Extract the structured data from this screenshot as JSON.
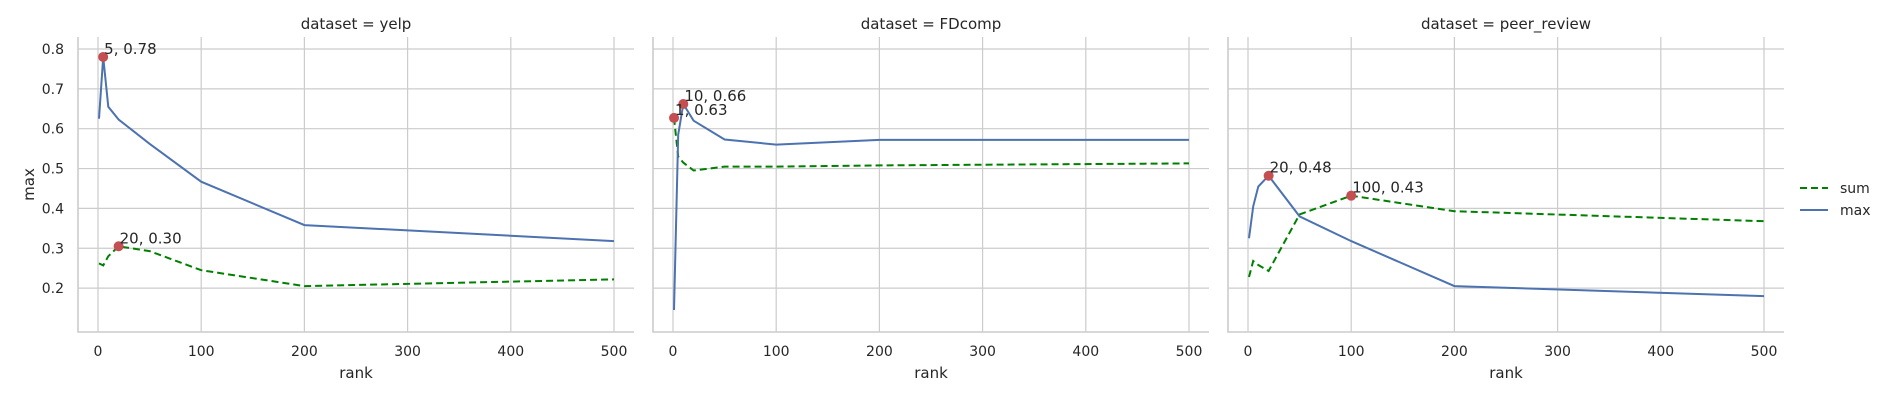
{
  "chart_data": {
    "type": "line",
    "ylabel": "max",
    "xlabel": "rank",
    "xlim": [
      -25,
      525
    ],
    "ylim": [
      0.115,
      0.81
    ],
    "xticks": [
      0,
      100,
      200,
      300,
      400,
      500
    ],
    "yticks": [
      0.2,
      0.3,
      0.4,
      0.5,
      0.6,
      0.7,
      0.8
    ],
    "grid": true,
    "legend_position": "right",
    "colors": {
      "sum": "#008000",
      "max": "#4c72b0",
      "marker": "#c44e52"
    },
    "legend": [
      {
        "name": "sum",
        "style": "dashed"
      },
      {
        "name": "max",
        "style": "solid"
      }
    ],
    "panels": [
      {
        "title": "dataset = yelp",
        "series": [
          {
            "name": "sum",
            "x": [
              1,
              5,
              10,
              20,
              50,
              100,
              200,
              500
            ],
            "y": [
              0.262,
              0.257,
              0.28,
              0.305,
              0.293,
              0.245,
              0.205,
              0.222
            ]
          },
          {
            "name": "max",
            "x": [
              1,
              5,
              10,
              20,
              50,
              100,
              200,
              500
            ],
            "y": [
              0.625,
              0.78,
              0.655,
              0.623,
              0.562,
              0.467,
              0.358,
              0.318
            ]
          }
        ],
        "annotations": [
          {
            "x": 5,
            "y": 0.78,
            "text": "5, 0.78"
          },
          {
            "x": 20,
            "y": 0.305,
            "text": "20, 0.30"
          }
        ]
      },
      {
        "title": "dataset = FDcomp",
        "series": [
          {
            "name": "sum",
            "x": [
              1,
              5,
              10,
              20,
              50,
              100,
              200,
              500
            ],
            "y": [
              0.627,
              0.53,
              0.515,
              0.495,
              0.505,
              0.505,
              0.508,
              0.513
            ]
          },
          {
            "name": "max",
            "x": [
              1,
              5,
              10,
              20,
              50,
              100,
              200,
              500
            ],
            "y": [
              0.145,
              0.585,
              0.662,
              0.62,
              0.573,
              0.56,
              0.572,
              0.572
            ]
          }
        ],
        "annotations": [
          {
            "x": 10,
            "y": 0.662,
            "text": "10, 0.66"
          },
          {
            "x": 1,
            "y": 0.627,
            "text": "1, 0.63"
          }
        ]
      },
      {
        "title": "dataset = peer_review",
        "series": [
          {
            "name": "sum",
            "x": [
              1,
              5,
              10,
              20,
              50,
              100,
              200,
              500
            ],
            "y": [
              0.228,
              0.268,
              0.258,
              0.243,
              0.385,
              0.432,
              0.393,
              0.368
            ]
          },
          {
            "name": "max",
            "x": [
              1,
              5,
              10,
              20,
              50,
              100,
              200,
              500
            ],
            "y": [
              0.325,
              0.405,
              0.455,
              0.482,
              0.38,
              0.318,
              0.205,
              0.18
            ]
          }
        ],
        "annotations": [
          {
            "x": 20,
            "y": 0.482,
            "text": "20, 0.48"
          },
          {
            "x": 100,
            "y": 0.432,
            "text": "100, 0.43"
          }
        ]
      }
    ]
  }
}
